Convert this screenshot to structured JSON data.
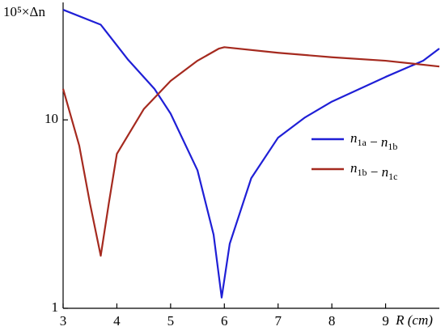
{
  "chart_data": {
    "type": "line",
    "ylabel": "10⁵×Δn",
    "xlabel": "R (cm)",
    "xlim": [
      3,
      10
    ],
    "xticks": [
      3,
      4,
      5,
      6,
      7,
      8,
      9
    ],
    "ylim": [
      1,
      42
    ],
    "yticks": [
      1,
      10
    ],
    "log_y": true,
    "legend": "right",
    "series": [
      {
        "name": "n1a − n1b",
        "color": "#1f1fd6",
        "x": [
          3,
          3.7,
          4.2,
          4.7,
          5,
          5.5,
          5.8,
          5.95,
          6.1,
          6.5,
          7,
          7.5,
          8,
          9,
          9.7,
          10
        ],
        "values": [
          38.4,
          32,
          21,
          14.6,
          10.8,
          5.4,
          2.46,
          1.14,
          2.2,
          4.9,
          8.05,
          10.3,
          12.5,
          16.9,
          20.6,
          23.9
        ]
      },
      {
        "name": "n1b − n1c",
        "color": "#a52a1f",
        "x": [
          3,
          3.3,
          3.5,
          3.7,
          3.85,
          4,
          4.5,
          5,
          5.5,
          5.9,
          6,
          7,
          8,
          9,
          10
        ],
        "values": [
          14.6,
          7.3,
          3.6,
          1.9,
          3.6,
          6.6,
          11.4,
          16.1,
          20.6,
          23.9,
          24.3,
          22.7,
          21.5,
          20.6,
          19.2
        ]
      }
    ]
  }
}
